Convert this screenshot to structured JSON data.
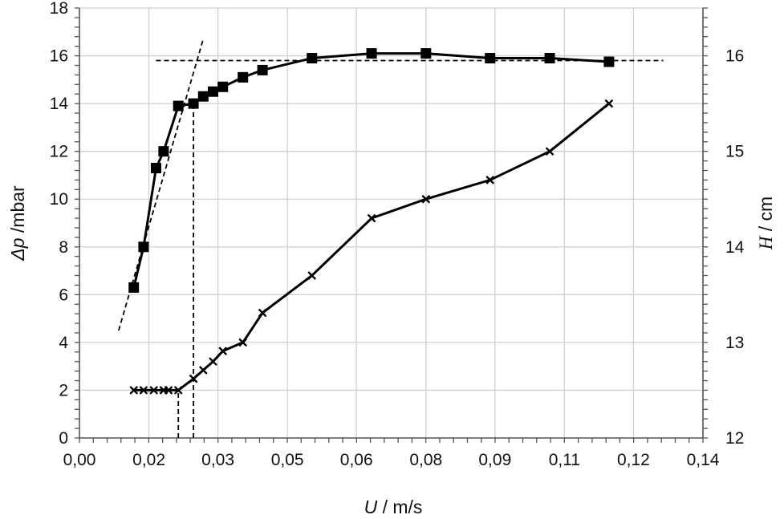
{
  "chart_data": {
    "type": "line",
    "xlabel": {
      "symbol": "U",
      "unit": " / m/s"
    },
    "ylabel_left": {
      "symbol": "Δp",
      "unit": " /mbar"
    },
    "ylabel_right": {
      "symbol": "H",
      "unit": " / cm"
    },
    "xlim": [
      0,
      0.14
    ],
    "ylim_left": [
      0,
      18
    ],
    "ylim_right": [
      12,
      16.5
    ],
    "x_ticks": [
      "0,00",
      "0,02",
      "0,03",
      "0,05",
      "0,06",
      "0,08",
      "0,09",
      "0,11",
      "0,12",
      "0,14"
    ],
    "x_tick_values": [
      0,
      0.0156,
      0.0311,
      0.0467,
      0.0622,
      0.0778,
      0.0933,
      0.1089,
      0.1244,
      0.14
    ],
    "y_left_ticks": [
      "0",
      "2",
      "4",
      "6",
      "8",
      "10",
      "12",
      "14",
      "16",
      "18"
    ],
    "y_left_tick_values": [
      0,
      2,
      4,
      6,
      8,
      10,
      12,
      14,
      16,
      18
    ],
    "y_right_ticks": [
      "12",
      "13",
      "14",
      "15",
      "16"
    ],
    "y_right_tick_values": [
      12,
      13,
      14,
      15,
      16
    ],
    "grid": true,
    "series": [
      {
        "axis": "left",
        "marker": "square",
        "color": "#000000",
        "x": [
          0.0122,
          0.0144,
          0.0172,
          0.0189,
          0.0222,
          0.0256,
          0.0278,
          0.03,
          0.0322,
          0.0367,
          0.0411,
          0.0522,
          0.0656,
          0.0778,
          0.0922,
          0.1056,
          0.1189
        ],
        "y": [
          6.3,
          8.0,
          11.3,
          12.0,
          13.9,
          14.0,
          14.3,
          14.5,
          14.7,
          15.1,
          15.4,
          15.9,
          16.1,
          16.1,
          15.9,
          15.9,
          15.75
        ]
      },
      {
        "axis": "right",
        "marker": "x",
        "color": "#000000",
        "x": [
          0.0122,
          0.0144,
          0.0167,
          0.0189,
          0.02,
          0.0222,
          0.0256,
          0.0278,
          0.03,
          0.0322,
          0.0367,
          0.0411,
          0.0522,
          0.0656,
          0.0778,
          0.0922,
          0.1056,
          0.1189
        ],
        "y": [
          12.5,
          12.5,
          12.5,
          12.5,
          12.5,
          12.5,
          12.62,
          12.71,
          12.8,
          12.91,
          13.0,
          13.31,
          13.7,
          14.3,
          14.5,
          14.7,
          15.0,
          15.5
        ]
      }
    ],
    "guides": [
      {
        "axis": "left",
        "x": [
          0.0088,
          0.0278
        ],
        "y": [
          4.5,
          16.7
        ]
      },
      {
        "axis": "left",
        "x": [
          0.0172,
          0.1311
        ],
        "y": [
          15.8,
          15.8
        ]
      },
      {
        "axis": "left",
        "x": [
          0.0256,
          0.0256
        ],
        "y": [
          0,
          14.0
        ]
      },
      {
        "axis": "left",
        "x": [
          0.0222,
          0.0222
        ],
        "y": [
          0,
          2.0
        ]
      }
    ]
  }
}
